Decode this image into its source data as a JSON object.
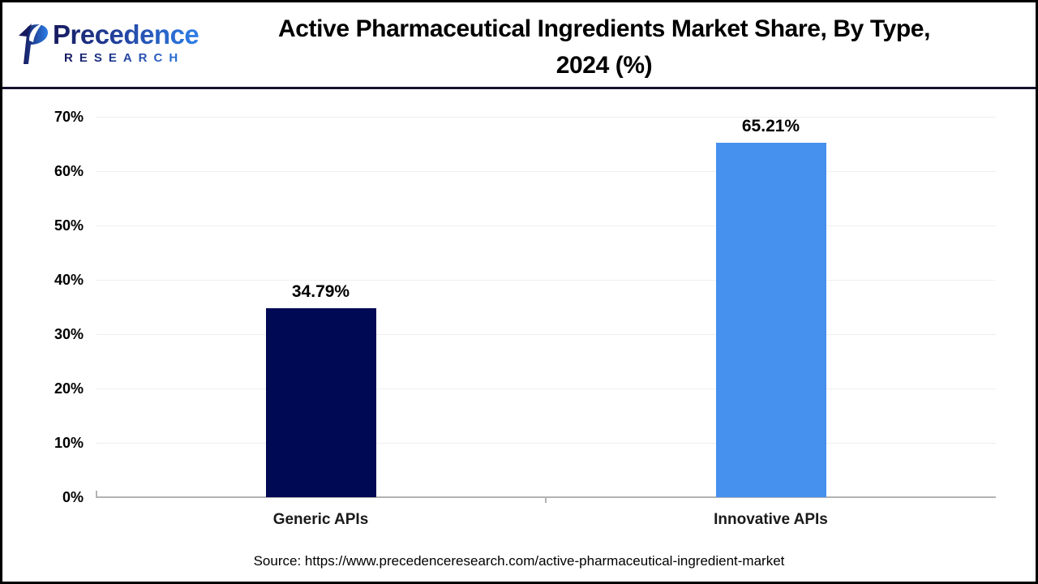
{
  "brand": {
    "name": "Precedence",
    "subname": "RESEARCH",
    "logo_color_dark": "#161a5e",
    "logo_color_light": "#2e7fe8"
  },
  "header": {
    "title_line1": "Active Pharmaceutical Ingredients Market Share, By Type,",
    "title_line2": "2024 (%)"
  },
  "chart_data": {
    "type": "bar",
    "title": "Active Pharmaceutical Ingredients Market Share, By Type, 2024 (%)",
    "categories": [
      "Generic APIs",
      "Innovative APIs"
    ],
    "values": [
      34.79,
      65.21
    ],
    "value_labels": [
      "34.79%",
      "65.21%"
    ],
    "bar_colors": [
      "#000a54",
      "#4690ee"
    ],
    "xlabel": "",
    "ylabel": "",
    "ylim": [
      0,
      70
    ],
    "yticks": [
      "0%",
      "10%",
      "20%",
      "30%",
      "40%",
      "50%",
      "60%",
      "70%"
    ],
    "grid": true,
    "gridline_color": "#efefef",
    "axis_color": "#b3b3b3",
    "legend_position": "none"
  },
  "footer": {
    "source": "Source: https://www.precedenceresearch.com/active-pharmaceutical-ingredient-market"
  }
}
